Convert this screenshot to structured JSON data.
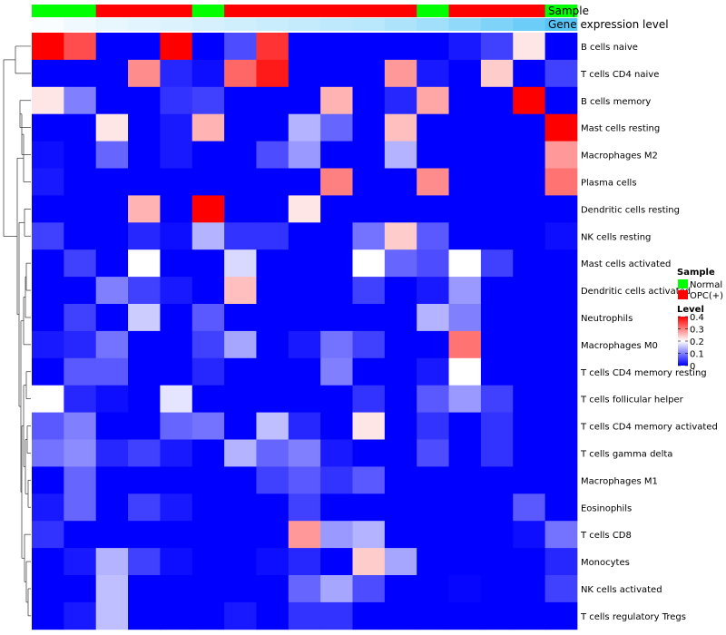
{
  "chart_data": {
    "type": "heatmap",
    "annotation_labels": [
      "Sample",
      "Gene expression level"
    ],
    "sample_groups": [
      "Normal",
      "Normal",
      "OPC(+)",
      "OPC(+)",
      "OPC(+)",
      "Normal",
      "OPC(+)",
      "OPC(+)",
      "OPC(+)",
      "OPC(+)",
      "OPC(+)",
      "OPC(+)",
      "Normal",
      "OPC(+)",
      "OPC(+)",
      "OPC(+)",
      "Normal"
    ],
    "gene_expression_level": [
      0.02,
      0.05,
      0.08,
      0.1,
      0.12,
      0.14,
      0.16,
      0.18,
      0.2,
      0.22,
      0.24,
      0.28,
      0.32,
      0.38,
      0.44,
      0.5,
      0.58
    ],
    "rows": [
      "B cells naive",
      "T cells CD4 naive",
      "B cells memory",
      "Mast cells resting",
      "Macrophages M2",
      "Plasma cells",
      "Dendritic cells resting",
      "NK cells resting",
      "Mast cells activated",
      "Dendritic cells activated",
      "Neutrophils",
      "Macrophages M0",
      "T cells CD4 memory resting",
      "T cells follicular helper",
      "T cells CD4 memory activated",
      "T cells gamma delta",
      "Macrophages M1",
      "Eosinophils",
      "T cells CD8",
      "Monocytes",
      "NK cells activated",
      "T cells regulatory  Tregs"
    ],
    "values": [
      [
        0.4,
        0.34,
        0,
        0,
        0.4,
        0,
        0.06,
        0.36,
        0,
        0,
        0,
        0,
        0,
        0.02,
        0.05,
        0.22,
        0
      ],
      [
        0,
        0,
        0,
        0.29,
        0.03,
        0.01,
        0.32,
        0.38,
        0,
        0,
        0,
        0.28,
        0.02,
        0,
        0.24,
        0,
        0.05
      ],
      [
        0.22,
        0.1,
        0,
        0,
        0.04,
        0.05,
        0,
        0,
        0,
        0.26,
        0,
        0.03,
        0.27,
        0,
        0,
        0.4,
        0
      ],
      [
        0,
        0,
        0.22,
        0,
        0.02,
        0.26,
        0,
        0,
        0.14,
        0.08,
        0,
        0.25,
        0,
        0,
        0,
        0,
        0.4
      ],
      [
        0.01,
        0,
        0.08,
        0,
        0.02,
        0,
        0,
        0.06,
        0.12,
        0,
        0,
        0.14,
        0,
        0,
        0,
        0,
        0.28
      ],
      [
        0.02,
        0,
        0,
        0,
        0,
        0,
        0,
        0,
        0,
        0.3,
        0,
        0,
        0.29,
        0,
        0,
        0,
        0.31
      ],
      [
        0,
        0,
        0,
        0.26,
        0,
        0.4,
        0,
        0,
        0.22,
        0,
        0,
        0,
        0,
        0,
        0,
        0,
        0
      ],
      [
        0.05,
        0,
        0,
        0.03,
        0.01,
        0.14,
        0.04,
        0.04,
        0,
        0,
        0.09,
        0.24,
        0.07,
        0,
        0,
        0,
        0.01
      ],
      [
        0,
        0.05,
        0,
        0.2,
        0,
        0,
        0.17,
        0,
        0,
        0,
        0.2,
        0.08,
        0.06,
        0.2,
        0.05,
        0,
        0
      ],
      [
        0,
        0,
        0.1,
        0.05,
        0.02,
        0,
        0.25,
        0,
        0,
        0,
        0.05,
        0,
        0.02,
        0.12,
        0,
        0,
        0
      ],
      [
        0,
        0.05,
        0,
        0.16,
        0,
        0.07,
        0,
        0,
        0,
        0,
        0,
        0,
        0.14,
        0.1,
        0,
        0,
        0
      ],
      [
        0.02,
        0.03,
        0.09,
        0,
        0,
        0.05,
        0.13,
        0,
        0.02,
        0.09,
        0.05,
        0,
        0,
        0.31,
        0,
        0,
        0
      ],
      [
        0,
        0.07,
        0.07,
        0,
        0,
        0.03,
        0,
        0,
        0,
        0.1,
        0,
        0,
        0.02,
        0.2,
        0,
        0,
        0
      ],
      [
        0.2,
        0.03,
        0.01,
        0,
        0.18,
        0,
        0,
        0,
        0,
        0,
        0.04,
        0,
        0.07,
        0.12,
        0.05,
        0,
        0
      ],
      [
        0.07,
        0.1,
        0,
        0,
        0.08,
        0.09,
        0,
        0.15,
        0.03,
        0,
        0.22,
        0,
        0.04,
        0,
        0.04,
        0,
        0
      ],
      [
        0.09,
        0.11,
        0.03,
        0.05,
        0.02,
        0,
        0.14,
        0.08,
        0.1,
        0.02,
        0,
        0,
        0.06,
        0,
        0.04,
        0,
        0
      ],
      [
        0,
        0.08,
        0,
        0,
        0,
        0,
        0,
        0.05,
        0.07,
        0.04,
        0.07,
        0,
        0,
        0,
        0,
        0,
        0
      ],
      [
        0.02,
        0.08,
        0,
        0.05,
        0.02,
        0,
        0,
        0,
        0.05,
        0,
        0,
        0,
        0,
        0,
        0,
        0.07,
        0
      ],
      [
        0.04,
        0,
        0,
        0,
        0,
        0,
        0,
        0,
        0.28,
        0.12,
        0.14,
        0,
        0,
        0,
        0,
        0.01,
        0.09
      ],
      [
        0,
        0.02,
        0.14,
        0.05,
        0.01,
        0,
        0,
        0.01,
        0.03,
        0,
        0.24,
        0.13,
        0,
        0,
        0,
        0,
        0.03
      ],
      [
        0,
        0,
        0.15,
        0,
        0,
        0,
        0,
        0,
        0.08,
        0.13,
        0.06,
        0,
        0,
        0.005,
        0,
        0,
        0.05
      ],
      [
        0,
        0.02,
        0.15,
        0,
        0,
        0,
        0.02,
        0,
        0.04,
        0.04,
        0,
        0,
        0,
        0,
        0,
        0,
        0
      ]
    ],
    "legend": {
      "sample_title": "Sample",
      "sample_entries": [
        {
          "label": "Normal",
          "color": "#00ff00"
        },
        {
          "label": "OPC(+)",
          "color": "#ff0000"
        }
      ],
      "level_title": "Level",
      "level_ticks": [
        "0.4",
        "0.3",
        "0.2",
        "0.1",
        "0"
      ],
      "scale_min": 0,
      "scale_max": 0.4
    },
    "colors": {
      "low": "#0000ff",
      "mid": "#ffffff",
      "high": "#ff0000",
      "annotation_low": "#ffffff",
      "annotation_high": "#4fc3f7"
    }
  }
}
